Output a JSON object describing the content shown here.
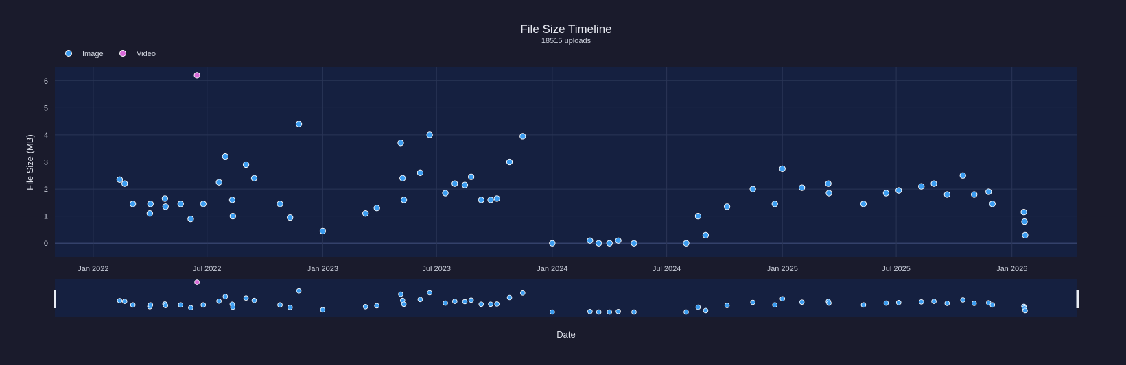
{
  "chart_data": {
    "type": "scatter",
    "title": "File Size Timeline",
    "subtitle": "18515 uploads",
    "xlabel": "Date",
    "ylabel": "File Size (MB)",
    "x_type": "date",
    "x_range": [
      "2021-11-01",
      "2026-04-15"
    ],
    "y_range": [
      -0.5,
      6.5
    ],
    "x_ticks": [
      {
        "date": "2022-01-01",
        "label": "Jan 2022"
      },
      {
        "date": "2022-07-01",
        "label": "Jul 2022"
      },
      {
        "date": "2023-01-01",
        "label": "Jan 2023"
      },
      {
        "date": "2023-07-01",
        "label": "Jul 2023"
      },
      {
        "date": "2024-01-01",
        "label": "Jan 2024"
      },
      {
        "date": "2024-07-01",
        "label": "Jul 2024"
      },
      {
        "date": "2025-01-01",
        "label": "Jan 2025"
      },
      {
        "date": "2025-07-01",
        "label": "Jul 2025"
      },
      {
        "date": "2026-01-01",
        "label": "Jan 2026"
      }
    ],
    "y_ticks": [
      0,
      1,
      2,
      3,
      4,
      5,
      6
    ],
    "grid": true,
    "legend_position": "top-left",
    "range_slider": true,
    "colors": {
      "background": "#1a1b2c",
      "plot_background": "#152040",
      "grid": "#2a3556",
      "Image": "#3b9cf0",
      "Video": "#d86ad8",
      "marker_outline": "#ffffff"
    },
    "series": [
      {
        "name": "Image",
        "points": [
          [
            "2022-02-12",
            2.35
          ],
          [
            "2022-02-20",
            2.2
          ],
          [
            "2022-03-05",
            1.45
          ],
          [
            "2022-04-01",
            1.1
          ],
          [
            "2022-04-02",
            1.45
          ],
          [
            "2022-04-25",
            1.65
          ],
          [
            "2022-04-26",
            1.35
          ],
          [
            "2022-05-20",
            1.45
          ],
          [
            "2022-06-05",
            0.9
          ],
          [
            "2022-06-25",
            1.45
          ],
          [
            "2022-07-20",
            2.25
          ],
          [
            "2022-07-30",
            3.2
          ],
          [
            "2022-08-10",
            1.6
          ],
          [
            "2022-08-11",
            1.0
          ],
          [
            "2022-09-01",
            2.9
          ],
          [
            "2022-09-14",
            2.4
          ],
          [
            "2022-10-25",
            1.45
          ],
          [
            "2022-11-10",
            0.95
          ],
          [
            "2022-11-24",
            4.4
          ],
          [
            "2023-01-01",
            0.45
          ],
          [
            "2023-03-10",
            1.1
          ],
          [
            "2023-03-28",
            1.3
          ],
          [
            "2023-05-05",
            3.7
          ],
          [
            "2023-05-08",
            2.4
          ],
          [
            "2023-05-10",
            1.6
          ],
          [
            "2023-06-05",
            2.6
          ],
          [
            "2023-06-20",
            4.0
          ],
          [
            "2023-07-15",
            1.85
          ],
          [
            "2023-07-30",
            2.2
          ],
          [
            "2023-08-15",
            2.15
          ],
          [
            "2023-08-25",
            2.45
          ],
          [
            "2023-09-10",
            1.6
          ],
          [
            "2023-09-25",
            1.6
          ],
          [
            "2023-10-05",
            1.65
          ],
          [
            "2023-10-25",
            3.0
          ],
          [
            "2023-11-15",
            3.95
          ],
          [
            "2024-01-01",
            0.0
          ],
          [
            "2024-03-01",
            0.1
          ],
          [
            "2024-03-15",
            0.0
          ],
          [
            "2024-04-01",
            0.0
          ],
          [
            "2024-04-15",
            0.1
          ],
          [
            "2024-05-10",
            0.0
          ],
          [
            "2024-08-01",
            0.0
          ],
          [
            "2024-08-20",
            1.0
          ],
          [
            "2024-09-01",
            0.3
          ],
          [
            "2024-10-05",
            1.35
          ],
          [
            "2024-11-15",
            2.0
          ],
          [
            "2024-12-20",
            1.45
          ],
          [
            "2025-01-01",
            2.75
          ],
          [
            "2025-02-01",
            2.05
          ],
          [
            "2025-03-15",
            2.2
          ],
          [
            "2025-03-16",
            1.85
          ],
          [
            "2025-05-10",
            1.45
          ],
          [
            "2025-06-15",
            1.85
          ],
          [
            "2025-07-05",
            1.95
          ],
          [
            "2025-08-10",
            2.1
          ],
          [
            "2025-08-30",
            2.2
          ],
          [
            "2025-09-20",
            1.8
          ],
          [
            "2025-10-15",
            2.5
          ],
          [
            "2025-11-02",
            1.8
          ],
          [
            "2025-11-25",
            1.9
          ],
          [
            "2025-12-01",
            1.45
          ],
          [
            "2026-01-20",
            1.15
          ],
          [
            "2026-01-21",
            0.8
          ],
          [
            "2026-01-22",
            0.3
          ]
        ]
      },
      {
        "name": "Video",
        "points": [
          [
            "2022-06-15",
            6.2
          ]
        ]
      }
    ]
  }
}
